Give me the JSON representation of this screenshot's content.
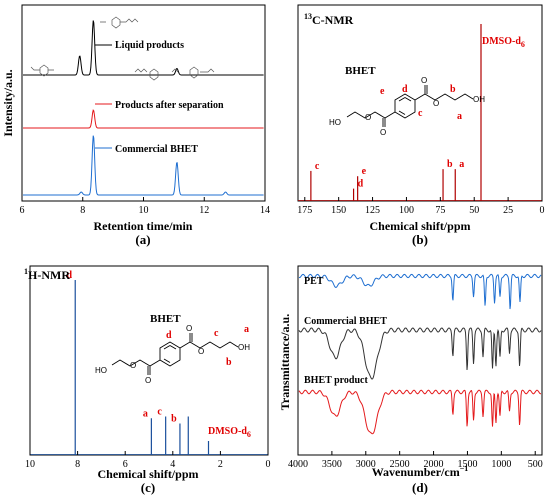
{
  "chart_data": [
    {
      "type": "line",
      "panel": "(a)",
      "xlabel": "Retention time/min",
      "ylabel": "Intensity/a.u.",
      "xlim": [
        6,
        14
      ],
      "xticks": [
        "6",
        "8",
        "10",
        "12",
        "14"
      ],
      "legend_placement": "inside-right",
      "series": [
        {
          "name": "Liquid products",
          "color": "#000000",
          "peaks": [
            {
              "x": 7.9,
              "y": 0.35
            },
            {
              "x": 8.35,
              "y": 1.0
            },
            {
              "x": 11.1,
              "y": 0.12
            }
          ]
        },
        {
          "name": "Products after separation",
          "color": "#e41a1c",
          "peaks": [
            {
              "x": 8.35,
              "y": 0.6
            }
          ]
        },
        {
          "name": "Commercial BHET",
          "color": "#1f6fd1",
          "peaks": [
            {
              "x": 7.95,
              "y": 0.05
            },
            {
              "x": 8.35,
              "y": 1.0
            },
            {
              "x": 11.1,
              "y": 0.55
            },
            {
              "x": 12.7,
              "y": 0.05
            }
          ]
        }
      ]
    },
    {
      "type": "line",
      "panel": "(b)",
      "title": "13C-NMR",
      "xlabel": "Chemical shift/ppm",
      "xlim": [
        180,
        0
      ],
      "xticks": [
        "175",
        "150",
        "125",
        "100",
        "75",
        "50",
        "25",
        "0"
      ],
      "solvent_label": "DMSO-d6",
      "peaks": [
        {
          "label": "c",
          "x": 170.5,
          "y": 0.17
        },
        {
          "label": "d",
          "x": 139.0,
          "y": 0.07
        },
        {
          "label": "e",
          "x": 136.0,
          "y": 0.14
        },
        {
          "label": "b",
          "x": 73.0,
          "y": 0.18
        },
        {
          "label": "a",
          "x": 64.0,
          "y": 0.18
        },
        {
          "label": "DMSO-d6",
          "x": 45.0,
          "y": 1.0
        }
      ],
      "molecule_name": "BHET",
      "structure_letters": [
        "e",
        "d",
        "c",
        "b",
        "a"
      ]
    },
    {
      "type": "line",
      "panel": "(c)",
      "title": "1H-NMR",
      "xlabel": "Chemical shift/ppm",
      "xlim": [
        10,
        0
      ],
      "xticks": [
        "10",
        "8",
        "6",
        "4",
        "2",
        "0"
      ],
      "peaks": [
        {
          "label": "d",
          "x": 8.1,
          "y": 1.0
        },
        {
          "label": "a",
          "x": 4.9,
          "y": 0.21
        },
        {
          "label": "c",
          "x": 4.3,
          "y": 0.22
        },
        {
          "label": "b",
          "x": 3.7,
          "y": 0.18
        },
        {
          "label": "",
          "x": 3.35,
          "y": 0.22
        },
        {
          "label": "DMSO-d6",
          "x": 2.5,
          "y": 0.08
        }
      ],
      "molecule_name": "BHET",
      "structure_letters": [
        "d",
        "c",
        "a",
        "b"
      ]
    },
    {
      "type": "line",
      "panel": "(d)",
      "xlabel": "Wavenumber/cm⁻¹",
      "ylabel": "Transmittance/a.u.",
      "xlim": [
        4000,
        400
      ],
      "xticks": [
        "4000",
        "3500",
        "3000",
        "2500",
        "2000",
        "1500",
        "1000",
        "500"
      ],
      "series": [
        {
          "name": "PET",
          "color": "#1f6fd1",
          "bands": [
            3430,
            2960,
            1715,
            1410,
            1240,
            1100,
            1020,
            870,
            725
          ]
        },
        {
          "name": "Commercial BHET",
          "color": "#333333",
          "bands": [
            3450,
            2960,
            2880,
            1715,
            1505,
            1410,
            1270,
            1130,
            1080,
            1020,
            880,
            730
          ]
        },
        {
          "name": "BHET product",
          "color": "#e41a1c",
          "bands": [
            3450,
            2960,
            2880,
            1715,
            1505,
            1410,
            1270,
            1130,
            1080,
            1020,
            880,
            730
          ]
        }
      ]
    }
  ],
  "text": {
    "a_x_axis": "Retention time/min",
    "a_y_axis": "Intensity/a.u.",
    "a_legend_1": "Liquid products",
    "a_legend_2": "Products after separation",
    "a_legend_3": "Commercial BHET",
    "b_title_sup": "13",
    "b_title_main": "C-NMR",
    "b_solvent": "DMSO-d",
    "b_solvent_sub": "6",
    "b_molecule": "BHET",
    "b_x_axis": "Chemical shift/ppm",
    "c_title_sup": "1",
    "c_title_main": "H-NMR",
    "c_solvent": "DMSO-d",
    "c_solvent_sub": "6",
    "c_molecule": "BHET",
    "c_x_axis": "Chemical shift/ppm",
    "d_x_axis_main": "Wavenumber/cm",
    "d_x_axis_sup": "−1",
    "d_y_axis": "Transmittance/a.u.",
    "d_label_1": "PET",
    "d_label_2": "Commercial BHET",
    "d_label_3": "BHET product",
    "panel_a": "(a)",
    "panel_b": "(b)",
    "panel_c": "(c)",
    "panel_d": "(d)"
  },
  "colors": {
    "black": "#000000",
    "red": "#e41a1c",
    "blue": "#1f6fd1",
    "grey": "#333333",
    "nmr_blue": "#1a4f9c",
    "nmr_red": "#b00000",
    "label_red": "#e00000"
  }
}
